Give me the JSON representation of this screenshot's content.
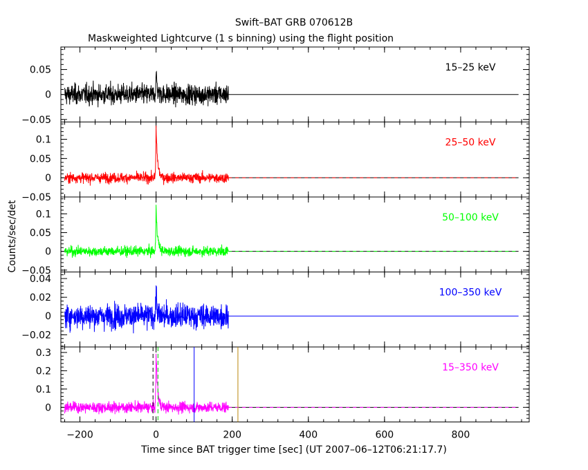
{
  "chart_data": {
    "type": "line",
    "title": "Swift–BAT GRB 070612B",
    "subtitle": "Maskweighted Lightcurve (1 s binning) using the flight position",
    "xlabel": "Time since BAT trigger time [sec] (UT 2007–06–12T06:21:17.7)",
    "ylabel": "Counts/sec/det",
    "xlim": [
      -250,
      980
    ],
    "x_ticks": [
      -200,
      0,
      200,
      400,
      600,
      800
    ],
    "x_tick_labels": [
      "−200",
      "0",
      "200",
      "400",
      "600",
      "800"
    ],
    "data_range": [
      -240,
      190
    ],
    "peak_time": 0,
    "markers": [
      {
        "x": -8,
        "color": "#000000",
        "style": "dashed"
      },
      {
        "x": 5,
        "color": "#00cc00",
        "style": "dashed"
      },
      {
        "x": 100,
        "color": "#0000ff",
        "style": "solid"
      },
      {
        "x": 215,
        "color": "#b8860b",
        "style": "solid"
      }
    ],
    "panels": [
      {
        "name": "15–25 keV",
        "color": "#000000",
        "ylim": [
          -0.055,
          0.095
        ],
        "yticks": [
          -0.05,
          0,
          0.05
        ],
        "ytick_labels": [
          "−0.05",
          "0",
          "0.05"
        ],
        "noise": 0.017,
        "peak": 0.045,
        "tail": 3
      },
      {
        "name": "25–50 keV",
        "color": "#ff0000",
        "ylim": [
          -0.05,
          0.145
        ],
        "yticks": [
          -0.05,
          0,
          0.05,
          0.1
        ],
        "ytick_labels": [
          "−0.05",
          "0",
          "0.05",
          "0.1"
        ],
        "noise": 0.011,
        "peak": 0.13,
        "tail": 4
      },
      {
        "name": "50–100 keV",
        "color": "#00ff00",
        "ylim": [
          -0.055,
          0.145
        ],
        "yticks": [
          -0.05,
          0,
          0.05,
          0.1
        ],
        "ytick_labels": [
          "−0.05",
          "0",
          "0.05",
          "0.1"
        ],
        "noise": 0.011,
        "peak": 0.12,
        "tail": 4
      },
      {
        "name": "100–350 keV",
        "color": "#0000ff",
        "ylim": [
          -0.033,
          0.047
        ],
        "yticks": [
          -0.02,
          0,
          0.02,
          0.04
        ],
        "ytick_labels": [
          "−0.02",
          "0",
          "0.02",
          "0.04"
        ],
        "noise": 0.011,
        "peak": 0.03,
        "tail": 2
      },
      {
        "name": "15–350 keV",
        "color": "#ff00ff",
        "ylim": [
          -0.08,
          0.33
        ],
        "yticks": [
          0,
          0.1,
          0.2,
          0.3
        ],
        "ytick_labels": [
          "0",
          "0.1",
          "0.2",
          "0.3"
        ],
        "noise": 0.025,
        "peak": 0.3,
        "tail": 4
      }
    ]
  }
}
